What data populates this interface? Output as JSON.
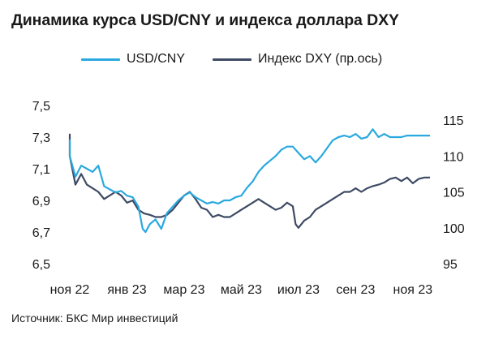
{
  "chart_data": {
    "type": "line",
    "title": "Динамика курса USD/CNY и индекса доллара DXY",
    "source": "Источник: БКС Мир инвестиций",
    "grid": false,
    "legend_position": "top",
    "x_tick_labels": [
      "ноя 22",
      "янв 23",
      "мар 23",
      "май 23",
      "июл 23",
      "сен 23",
      "ноя 23"
    ],
    "x_range": [
      0,
      12.6
    ],
    "y_left": {
      "range": [
        6.5,
        7.5
      ],
      "ticks": [
        6.5,
        6.7,
        6.9,
        7.1,
        7.3,
        7.5
      ],
      "tick_labels": [
        "6,5",
        "6,7",
        "6,9",
        "7,1",
        "7,3",
        "7,5"
      ]
    },
    "y_right": {
      "range": [
        95,
        118
      ],
      "ticks": [
        95,
        100,
        105,
        110,
        115
      ],
      "tick_labels": [
        "95",
        "100",
        "105",
        "110",
        "115"
      ]
    },
    "series": [
      {
        "name": "USD/CNY",
        "axis": "left",
        "color": "#2aa9e0",
        "points": [
          [
            -0.4,
            7.22
          ],
          [
            -0.2,
            7.28
          ],
          [
            0.0,
            7.18
          ],
          [
            0.2,
            7.05
          ],
          [
            0.4,
            7.12
          ],
          [
            0.6,
            7.1
          ],
          [
            0.8,
            7.08
          ],
          [
            1.0,
            7.12
          ],
          [
            1.2,
            6.99
          ],
          [
            1.4,
            6.97
          ],
          [
            1.6,
            6.95
          ],
          [
            1.8,
            6.96
          ],
          [
            2.0,
            6.93
          ],
          [
            2.2,
            6.92
          ],
          [
            2.4,
            6.86
          ],
          [
            2.55,
            6.72
          ],
          [
            2.65,
            6.7
          ],
          [
            2.8,
            6.75
          ],
          [
            3.0,
            6.78
          ],
          [
            3.2,
            6.72
          ],
          [
            3.4,
            6.82
          ],
          [
            3.6,
            6.86
          ],
          [
            3.8,
            6.9
          ],
          [
            4.0,
            6.93
          ],
          [
            4.2,
            6.95
          ],
          [
            4.4,
            6.92
          ],
          [
            4.6,
            6.9
          ],
          [
            4.8,
            6.88
          ],
          [
            5.0,
            6.89
          ],
          [
            5.2,
            6.88
          ],
          [
            5.4,
            6.9
          ],
          [
            5.6,
            6.9
          ],
          [
            5.8,
            6.92
          ],
          [
            6.0,
            6.93
          ],
          [
            6.2,
            6.98
          ],
          [
            6.4,
            7.02
          ],
          [
            6.6,
            7.08
          ],
          [
            6.8,
            7.12
          ],
          [
            7.0,
            7.15
          ],
          [
            7.2,
            7.18
          ],
          [
            7.4,
            7.22
          ],
          [
            7.6,
            7.24
          ],
          [
            7.8,
            7.24
          ],
          [
            8.0,
            7.2
          ],
          [
            8.2,
            7.16
          ],
          [
            8.4,
            7.18
          ],
          [
            8.6,
            7.14
          ],
          [
            8.8,
            7.18
          ],
          [
            9.0,
            7.23
          ],
          [
            9.2,
            7.28
          ],
          [
            9.4,
            7.3
          ],
          [
            9.6,
            7.31
          ],
          [
            9.8,
            7.3
          ],
          [
            10.0,
            7.32
          ],
          [
            10.2,
            7.29
          ],
          [
            10.4,
            7.3
          ],
          [
            10.6,
            7.35
          ],
          [
            10.8,
            7.3
          ],
          [
            11.0,
            7.32
          ],
          [
            11.2,
            7.3
          ],
          [
            11.4,
            7.3
          ],
          [
            11.6,
            7.3
          ],
          [
            11.8,
            7.31
          ],
          [
            12.0,
            7.31
          ],
          [
            12.2,
            7.31
          ],
          [
            12.4,
            7.31
          ],
          [
            12.6,
            7.31
          ]
        ]
      },
      {
        "name": "Индекс DXY (пр.ось)",
        "axis": "right",
        "color": "#3d4a63",
        "points": [
          [
            -0.4,
            112.5
          ],
          [
            -0.2,
            113.0
          ],
          [
            0.0,
            110.0
          ],
          [
            0.2,
            106.0
          ],
          [
            0.4,
            107.5
          ],
          [
            0.6,
            106.0
          ],
          [
            0.8,
            105.5
          ],
          [
            1.0,
            105.0
          ],
          [
            1.2,
            104.0
          ],
          [
            1.4,
            104.5
          ],
          [
            1.6,
            105.0
          ],
          [
            1.8,
            104.5
          ],
          [
            2.0,
            103.5
          ],
          [
            2.2,
            103.8
          ],
          [
            2.4,
            102.5
          ],
          [
            2.6,
            102.0
          ],
          [
            2.8,
            101.8
          ],
          [
            3.0,
            101.5
          ],
          [
            3.2,
            101.5
          ],
          [
            3.4,
            101.8
          ],
          [
            3.6,
            102.5
          ],
          [
            3.8,
            103.5
          ],
          [
            4.0,
            104.5
          ],
          [
            4.2,
            105.0
          ],
          [
            4.4,
            104.0
          ],
          [
            4.6,
            102.8
          ],
          [
            4.8,
            102.5
          ],
          [
            5.0,
            101.5
          ],
          [
            5.2,
            101.8
          ],
          [
            5.4,
            101.5
          ],
          [
            5.6,
            101.5
          ],
          [
            5.8,
            102.0
          ],
          [
            6.0,
            102.5
          ],
          [
            6.2,
            103.0
          ],
          [
            6.4,
            103.5
          ],
          [
            6.6,
            104.0
          ],
          [
            6.8,
            103.5
          ],
          [
            7.0,
            103.0
          ],
          [
            7.2,
            102.5
          ],
          [
            7.4,
            102.8
          ],
          [
            7.6,
            103.5
          ],
          [
            7.8,
            103.0
          ],
          [
            7.9,
            100.5
          ],
          [
            8.0,
            100.0
          ],
          [
            8.2,
            101.0
          ],
          [
            8.4,
            101.5
          ],
          [
            8.6,
            102.5
          ],
          [
            8.8,
            103.0
          ],
          [
            9.0,
            103.5
          ],
          [
            9.2,
            104.0
          ],
          [
            9.4,
            104.5
          ],
          [
            9.6,
            105.0
          ],
          [
            9.8,
            105.0
          ],
          [
            10.0,
            105.5
          ],
          [
            10.2,
            105.0
          ],
          [
            10.4,
            105.5
          ],
          [
            10.6,
            105.8
          ],
          [
            10.8,
            106.0
          ],
          [
            11.0,
            106.3
          ],
          [
            11.2,
            106.8
          ],
          [
            11.4,
            107.0
          ],
          [
            11.6,
            106.5
          ],
          [
            11.8,
            107.0
          ],
          [
            12.0,
            106.2
          ],
          [
            12.2,
            106.8
          ],
          [
            12.4,
            107.0
          ],
          [
            12.6,
            107.0
          ]
        ]
      }
    ]
  }
}
